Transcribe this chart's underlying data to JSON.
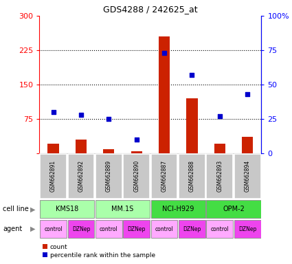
{
  "title": "GDS4288 / 242625_at",
  "samples": [
    "GSM662891",
    "GSM662892",
    "GSM662889",
    "GSM662890",
    "GSM662887",
    "GSM662888",
    "GSM662893",
    "GSM662894"
  ],
  "counts": [
    20,
    30,
    8,
    4,
    255,
    120,
    20,
    35
  ],
  "percentile_ranks": [
    30,
    28,
    25,
    10,
    73,
    57,
    27,
    43
  ],
  "cell_lines": [
    {
      "label": "KMS18",
      "start": 0,
      "end": 2,
      "color": "#AAFFAA"
    },
    {
      "label": "MM.1S",
      "start": 2,
      "end": 4,
      "color": "#AAFFAA"
    },
    {
      "label": "NCI-H929",
      "start": 4,
      "end": 6,
      "color": "#44DD44"
    },
    {
      "label": "OPM-2",
      "start": 6,
      "end": 8,
      "color": "#44DD44"
    }
  ],
  "agents": [
    {
      "label": "control",
      "start": 0,
      "end": 1,
      "color": "#FFAAFF"
    },
    {
      "label": "DZNep",
      "start": 1,
      "end": 2,
      "color": "#EE44EE"
    },
    {
      "label": "control",
      "start": 2,
      "end": 3,
      "color": "#FFAAFF"
    },
    {
      "label": "DZNep",
      "start": 3,
      "end": 4,
      "color": "#EE44EE"
    },
    {
      "label": "control",
      "start": 4,
      "end": 5,
      "color": "#FFAAFF"
    },
    {
      "label": "DZNep",
      "start": 5,
      "end": 6,
      "color": "#EE44EE"
    },
    {
      "label": "control",
      "start": 6,
      "end": 7,
      "color": "#FFAAFF"
    },
    {
      "label": "DZNep",
      "start": 7,
      "end": 8,
      "color": "#EE44EE"
    }
  ],
  "ylim_left": [
    0,
    300
  ],
  "ylim_right": [
    0,
    100
  ],
  "yticks_left": [
    0,
    75,
    150,
    225,
    300
  ],
  "ytick_labels_left": [
    "",
    "75",
    "150",
    "225",
    "300"
  ],
  "yticks_right": [
    0,
    25,
    50,
    75,
    100
  ],
  "ytick_labels_right": [
    "0",
    "25",
    "50",
    "75",
    "100%"
  ],
  "hgrid_lines": [
    75,
    150,
    225
  ],
  "bar_color": "#CC2200",
  "scatter_color": "#0000CC",
  "count_label": "count",
  "percentile_label": "percentile rank within the sample",
  "cell_line_label": "cell line",
  "agent_label": "agent",
  "sample_box_color": "#C8C8C8",
  "bar_width": 0.4
}
